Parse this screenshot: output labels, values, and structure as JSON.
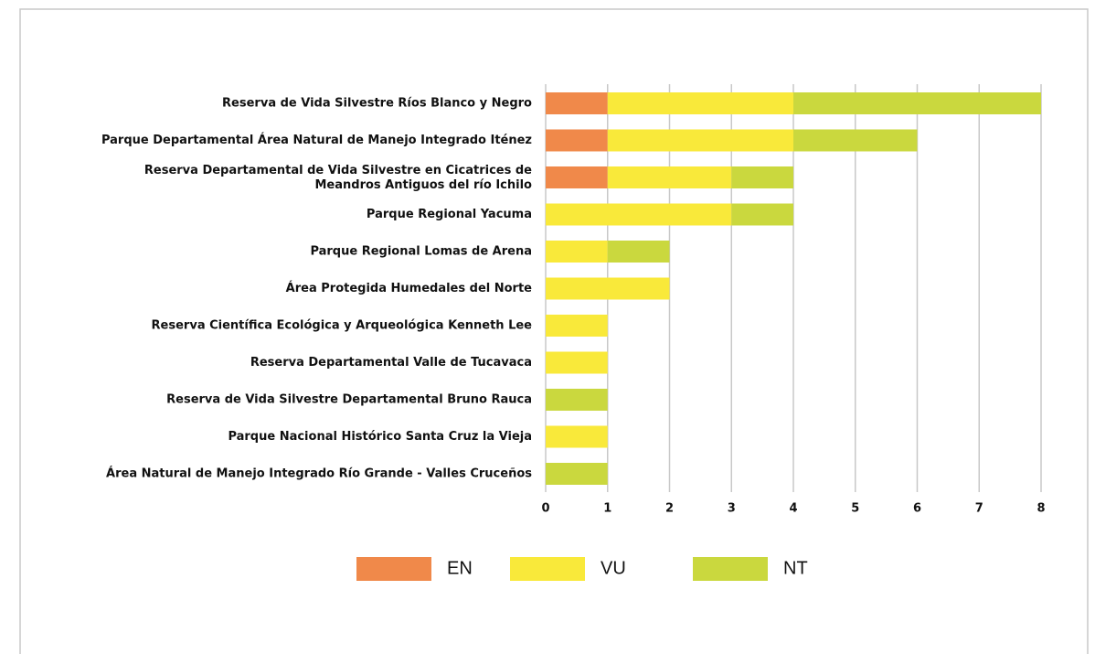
{
  "chart_data": {
    "type": "bar",
    "orientation": "horizontal",
    "stacked": true,
    "categories": [
      "Reserva de Vida Silvestre Ríos Blanco y Negro",
      "Parque Departamental Área Natural de Manejo Integrado Iténez",
      "Reserva Departamental de Vida Silvestre en Cicatrices de\nMeandros Antiguos del río Ichilo",
      "Parque Regional Yacuma",
      "Parque Regional Lomas de Arena",
      "Área Protegida Humedales del Norte",
      "Reserva Científica Ecológica y Arqueológica Kenneth Lee",
      "Reserva Departamental Valle de Tucavaca",
      "Reserva de Vida Silvestre Departamental Bruno Rauca",
      "Parque Nacional Histórico Santa Cruz la Vieja",
      "Área Natural de Manejo Integrado Río Grande - Valles Cruceños"
    ],
    "series": [
      {
        "name": "EN",
        "color": "#f0894a",
        "values": [
          1,
          1,
          1,
          0,
          0,
          0,
          0,
          0,
          0,
          0,
          0
        ]
      },
      {
        "name": "VU",
        "color": "#f9e93a",
        "values": [
          3,
          3,
          2,
          3,
          1,
          2,
          1,
          1,
          0,
          1,
          0
        ]
      },
      {
        "name": "NT",
        "color": "#cad83e",
        "values": [
          4,
          2,
          1,
          1,
          1,
          0,
          0,
          0,
          1,
          0,
          1
        ]
      }
    ],
    "xlim": [
      0,
      8
    ],
    "xticks": [
      0,
      1,
      2,
      3,
      4,
      5,
      6,
      7,
      8
    ],
    "grid": true,
    "legend": "bottom"
  }
}
